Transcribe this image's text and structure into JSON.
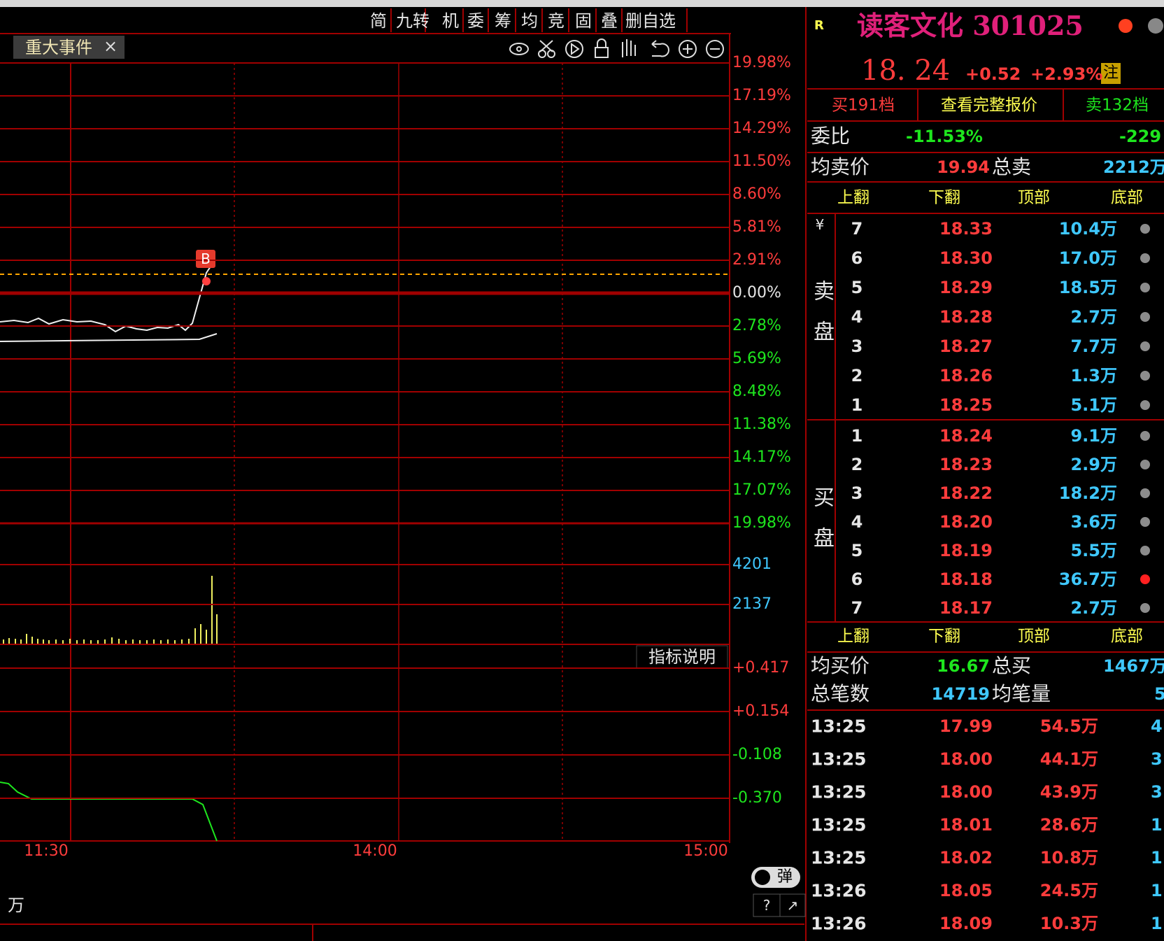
{
  "top_toolbar": {
    "buttons": [
      "简",
      "九转",
      "机",
      "委",
      "筹",
      "均",
      "竞",
      "固",
      "叠",
      "删自选"
    ]
  },
  "tab": {
    "label": "重大事件",
    "close": "×"
  },
  "chart": {
    "price_axis": [
      {
        "text": "19.98%",
        "color": "#ff3c3c"
      },
      {
        "text": "17.19%",
        "color": "#ff3c3c"
      },
      {
        "text": "14.29%",
        "color": "#ff3c3c"
      },
      {
        "text": "11.50%",
        "color": "#ff3c3c"
      },
      {
        "text": "8.60%",
        "color": "#ff3c3c"
      },
      {
        "text": "5.81%",
        "color": "#ff3c3c"
      },
      {
        "text": "2.91%",
        "color": "#ff3c3c"
      },
      {
        "text": "0.00%",
        "color": "#e6e6e6"
      },
      {
        "text": "2.78%",
        "color": "#1ee61e"
      },
      {
        "text": "5.69%",
        "color": "#1ee61e"
      },
      {
        "text": "8.48%",
        "color": "#1ee61e"
      },
      {
        "text": "11.38%",
        "color": "#1ee61e"
      },
      {
        "text": "14.17%",
        "color": "#1ee61e"
      },
      {
        "text": "17.07%",
        "color": "#1ee61e"
      },
      {
        "text": "19.98%",
        "color": "#1ee61e"
      }
    ],
    "volume_axis": [
      "4201",
      "2137"
    ],
    "indicator_button": "指标说明",
    "indicator_axis": [
      {
        "text": "+0.417",
        "color": "#ff3c3c"
      },
      {
        "text": "+0.154",
        "color": "#ff3c3c"
      },
      {
        "text": "-0.108",
        "color": "#1ee61e"
      },
      {
        "text": "-0.370",
        "color": "#1ee61e"
      }
    ],
    "time_axis": [
      "11:30",
      "14:00",
      "15:00"
    ],
    "buy_marker": "B"
  },
  "footer": {
    "toggle": "弹",
    "help": "?",
    "expand": "↗",
    "unit": "万"
  },
  "quote": {
    "flag": "R",
    "name": "读客文化 301025",
    "price": "18. 24",
    "change": "+0.52",
    "change_pct": "+2.93%",
    "note": "注",
    "tabs": [
      "买191档",
      "查看完整报价",
      "卖132档"
    ],
    "ratio": {
      "label": "委比",
      "pct": "-11.53%",
      "diff": "-229"
    },
    "avg_sell": {
      "label": "均卖价",
      "value": "19.94",
      "total_label": "总卖",
      "total": "2212万"
    },
    "nav": [
      "上翻",
      "下翻",
      "顶部",
      "底部"
    ],
    "currency": "¥",
    "sell_label": "卖盘",
    "buy_label": "买盘",
    "sell": [
      {
        "level": "7",
        "price": "18.33",
        "volume": "10.4万",
        "dot_color": "#8c8c8c"
      },
      {
        "level": "6",
        "price": "18.30",
        "volume": "17.0万",
        "dot_color": "#8c8c8c"
      },
      {
        "level": "5",
        "price": "18.29",
        "volume": "18.5万",
        "dot_color": "#8c8c8c"
      },
      {
        "level": "4",
        "price": "18.28",
        "volume": "2.7万",
        "dot_color": "#8c8c8c"
      },
      {
        "level": "3",
        "price": "18.27",
        "volume": "7.7万",
        "dot_color": "#8c8c8c"
      },
      {
        "level": "2",
        "price": "18.26",
        "volume": "1.3万",
        "dot_color": "#8c8c8c"
      },
      {
        "level": "1",
        "price": "18.25",
        "volume": "5.1万",
        "dot_color": "#8c8c8c"
      }
    ],
    "buy": [
      {
        "level": "1",
        "price": "18.24",
        "volume": "9.1万",
        "dot_color": "#8c8c8c"
      },
      {
        "level": "2",
        "price": "18.23",
        "volume": "2.9万",
        "dot_color": "#8c8c8c"
      },
      {
        "level": "3",
        "price": "18.22",
        "volume": "18.2万",
        "dot_color": "#8c8c8c"
      },
      {
        "level": "4",
        "price": "18.20",
        "volume": "3.6万",
        "dot_color": "#8c8c8c"
      },
      {
        "level": "5",
        "price": "18.19",
        "volume": "5.5万",
        "dot_color": "#8c8c8c"
      },
      {
        "level": "6",
        "price": "18.18",
        "volume": "36.7万",
        "dot_color": "#ff2020"
      },
      {
        "level": "7",
        "price": "18.17",
        "volume": "2.7万",
        "dot_color": "#8c8c8c"
      }
    ],
    "avg_buy": {
      "label": "均买价",
      "value": "16.67",
      "total_label": "总买",
      "total": "1467万"
    },
    "count": {
      "label": "总笔数",
      "value": "14719",
      "avg_label": "均笔量",
      "avg": "5"
    },
    "trades": [
      {
        "time": "13:25",
        "price": "17.99",
        "amount": "54.5万",
        "extra": "4"
      },
      {
        "time": "13:25",
        "price": "18.00",
        "amount": "44.1万",
        "extra": "3"
      },
      {
        "time": "13:25",
        "price": "18.00",
        "amount": "43.9万",
        "extra": "3"
      },
      {
        "time": "13:25",
        "price": "18.01",
        "amount": "28.6万",
        "extra": "1"
      },
      {
        "time": "13:25",
        "price": "18.02",
        "amount": "10.8万",
        "extra": "1"
      },
      {
        "time": "13:26",
        "price": "18.05",
        "amount": "24.5万",
        "extra": "1"
      },
      {
        "time": "13:26",
        "price": "18.09",
        "amount": "10.3万",
        "extra": "1"
      }
    ]
  }
}
